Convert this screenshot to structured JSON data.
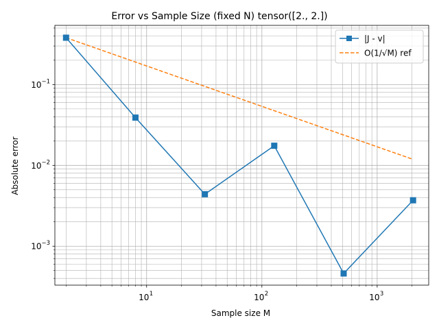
{
  "chart_data": {
    "type": "line",
    "title": "Error vs Sample Size (fixed N) tensor([2., 2.])",
    "xlabel": "Sample size M",
    "ylabel": "Absolute error",
    "xscale": "log",
    "yscale": "log",
    "xlim": [
      1.6,
      2800
    ],
    "ylim": [
      0.00033,
      0.54
    ],
    "grid": true,
    "legend_position": "top-right",
    "x_ticks": [
      {
        "base": "10",
        "exp": "1",
        "value": 10
      },
      {
        "base": "10",
        "exp": "2",
        "value": 100
      },
      {
        "base": "10",
        "exp": "3",
        "value": 1000
      }
    ],
    "y_ticks": [
      {
        "base": "10",
        "exp": "−3",
        "value": 0.001
      },
      {
        "base": "10",
        "exp": "−2",
        "value": 0.01
      },
      {
        "base": "10",
        "exp": "−1",
        "value": 0.1
      }
    ],
    "series": [
      {
        "name": "|J - v|",
        "color": "#1f77b4",
        "style": "solid",
        "marker": "square",
        "x": [
          2,
          8,
          32,
          128,
          512,
          2048
        ],
        "y": [
          0.38,
          0.039,
          0.0044,
          0.0175,
          0.00046,
          0.0037
        ]
      },
      {
        "name": "O(1/√M) ref",
        "color": "#ff7f0e",
        "style": "dashed",
        "marker": "none",
        "x": [
          2,
          8,
          32,
          128,
          512,
          2048
        ],
        "y": [
          0.38,
          0.19,
          0.095,
          0.0475,
          0.02375,
          0.011875
        ]
      }
    ]
  }
}
